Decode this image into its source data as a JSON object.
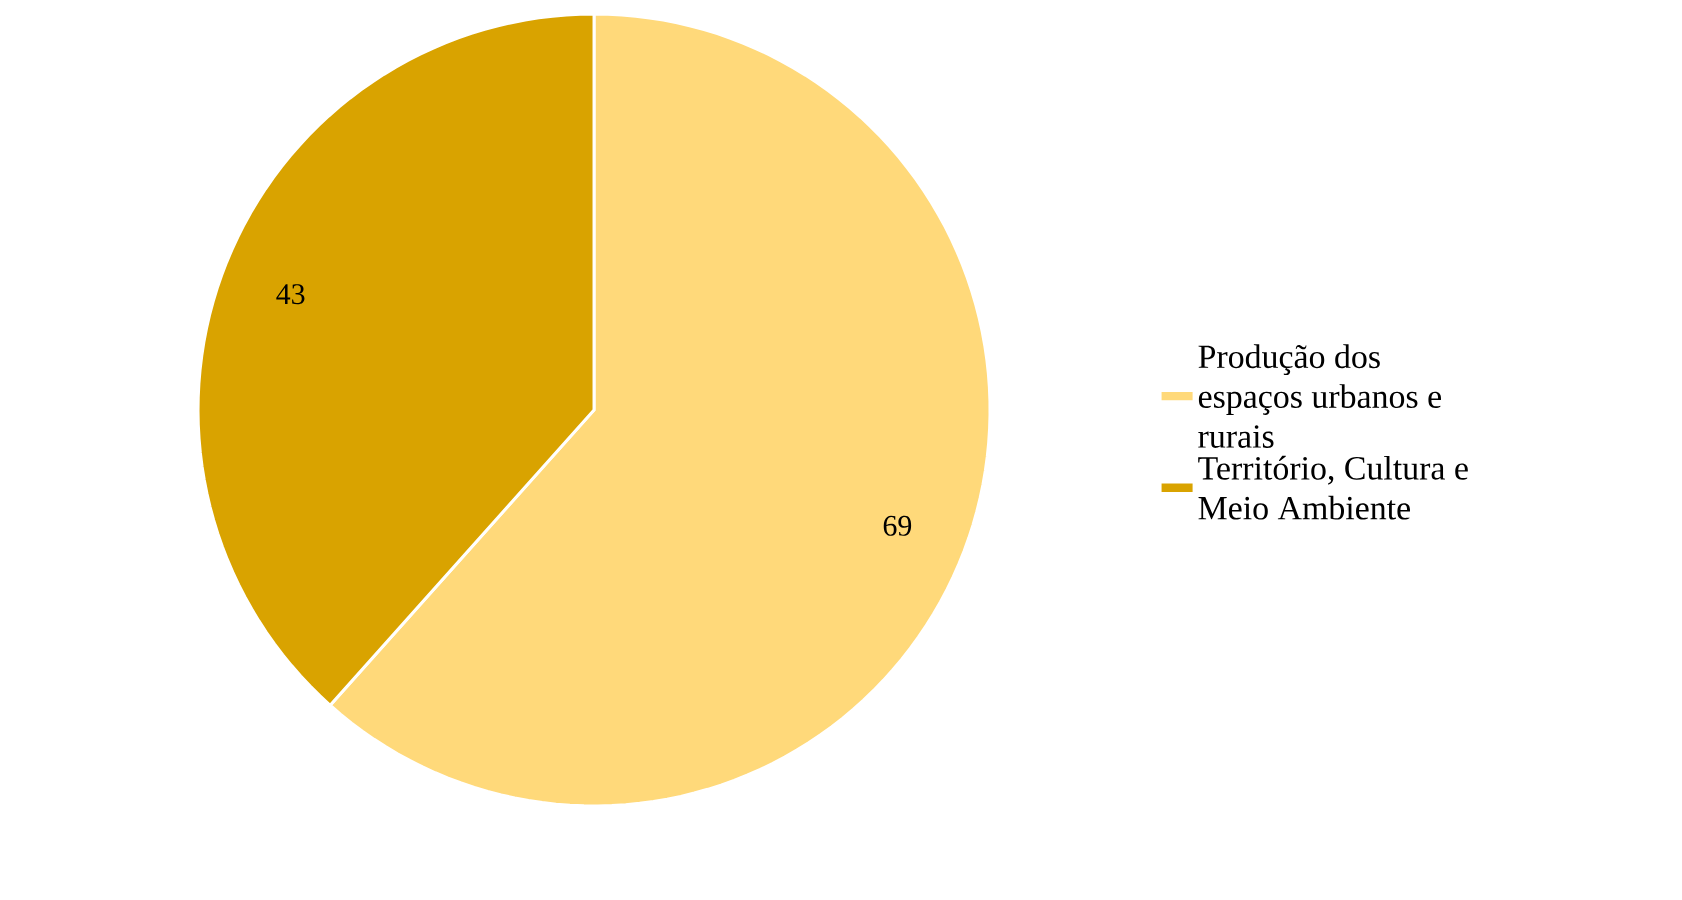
{
  "chart_data": {
    "type": "pie",
    "categories": [
      "Produção dos espaços urbanos e rurais",
      "Território, Cultura e Meio Ambiente"
    ],
    "values": [
      69,
      43
    ],
    "colors": [
      "#ffd97a",
      "#d9a300"
    ],
    "data_labels": true,
    "legend": "right"
  }
}
